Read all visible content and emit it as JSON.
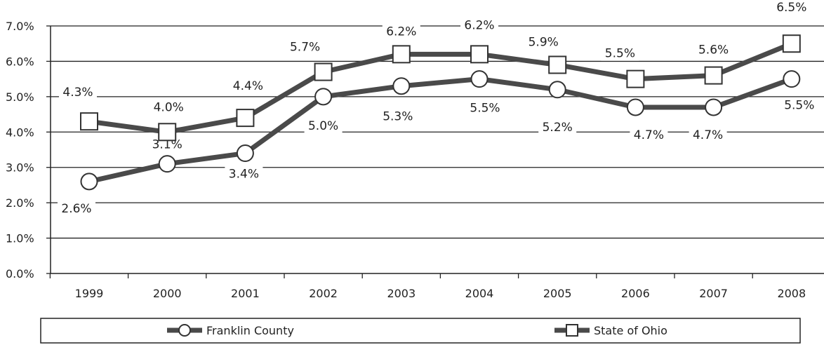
{
  "chart_data": {
    "type": "line",
    "categories": [
      "1999",
      "2000",
      "2001",
      "2002",
      "2003",
      "2004",
      "2005",
      "2006",
      "2007",
      "2008"
    ],
    "series": [
      {
        "name": "Franklin County",
        "marker": "circle",
        "values": [
          2.6,
          3.1,
          3.4,
          5.0,
          5.3,
          5.5,
          5.2,
          4.7,
          4.7,
          5.5
        ],
        "labels": [
          "2.6%",
          "3.1%",
          "3.4%",
          "5.0%",
          "5.3%",
          "5.5%",
          "5.2%",
          "4.7%",
          "4.7%",
          "5.5%"
        ]
      },
      {
        "name": "State of Ohio",
        "marker": "square",
        "values": [
          4.3,
          4.0,
          4.4,
          5.7,
          6.2,
          6.2,
          5.9,
          5.5,
          5.6,
          6.5
        ],
        "labels": [
          "4.3%",
          "4.0%",
          "4.4%",
          "5.7%",
          "6.2%",
          "6.2%",
          "5.9%",
          "5.5%",
          "5.6%",
          "6.5%"
        ]
      }
    ],
    "ylim": [
      0,
      7
    ],
    "yticks": [
      {
        "value": 0,
        "label": "0.0%"
      },
      {
        "value": 1,
        "label": "1.0%"
      },
      {
        "value": 2,
        "label": "2.0%"
      },
      {
        "value": 3,
        "label": "3.0%"
      },
      {
        "value": 4,
        "label": "4.0%"
      },
      {
        "value": 5,
        "label": "5.0%"
      },
      {
        "value": 6,
        "label": "6.0%"
      },
      {
        "value": 7,
        "label": "7.0%"
      }
    ],
    "grid": true,
    "legend_position": "bottom",
    "colors": {
      "line": "#4a4a4a",
      "grid": "#222222",
      "marker_fill": "#ffffff"
    }
  }
}
